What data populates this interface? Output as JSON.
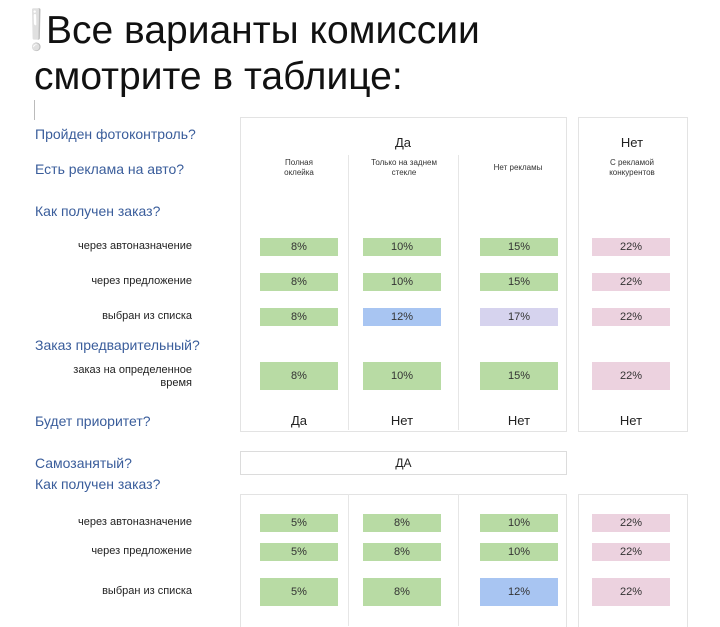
{
  "title": {
    "mark": "❕",
    "line1": "Все варианты комиссии",
    "line2": "смотрите в таблице:"
  },
  "questions": {
    "photo": "Пройден фотоконтроль?",
    "ads": "Есть реклама на авто?",
    "order_how": "Как получен заказ?",
    "preorder": "Заказ предварительный?",
    "priority": "Будет приоритет?",
    "selfemployed": "Самозанятый?",
    "order_how2": "Как получен заказ?"
  },
  "headers": {
    "yes": "Да",
    "no": "Нет",
    "sub": [
      "Полная оклейка",
      "Только на заднем стекле",
      "Нет рекламы",
      "С рекламой конкурентов"
    ]
  },
  "rows1": [
    {
      "label": "через автоназначение",
      "values": [
        "8%",
        "10%",
        "15%",
        "22%"
      ]
    },
    {
      "label": "через предложение",
      "values": [
        "8%",
        "10%",
        "15%",
        "22%"
      ]
    },
    {
      "label": "выбран из списка",
      "values": [
        "8%",
        "12%",
        "17%",
        "22%"
      ]
    }
  ],
  "preorder_row": {
    "label": "заказ на определенное время",
    "values": [
      "8%",
      "10%",
      "15%",
      "22%"
    ]
  },
  "priority_values": [
    "Да",
    "Нет",
    "Нет",
    "Нет"
  ],
  "selfemployed_value": "ДА",
  "rows2": [
    {
      "label": "через автоназначение",
      "values": [
        "5%",
        "8%",
        "10%",
        "22%"
      ]
    },
    {
      "label": "через предложение",
      "values": [
        "5%",
        "8%",
        "10%",
        "22%"
      ]
    },
    {
      "label": "выбран из списка",
      "values": [
        "5%",
        "8%",
        "12%",
        "22%"
      ]
    }
  ],
  "colors": {
    "green": "#b8dba4",
    "blue": "#a8c5f2",
    "lavender": "#d6d3ee",
    "pink": "#ecd2df",
    "question": "#3a5d9b"
  }
}
